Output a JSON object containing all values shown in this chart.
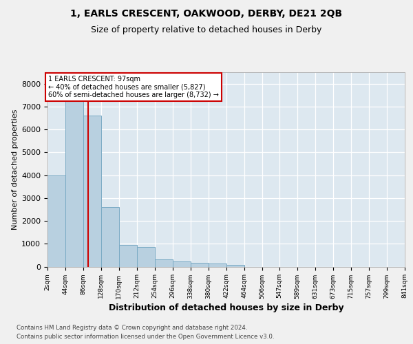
{
  "title": "1, EARLS CRESCENT, OAKWOOD, DERBY, DE21 2QB",
  "subtitle": "Size of property relative to detached houses in Derby",
  "xlabel": "Distribution of detached houses by size in Derby",
  "ylabel": "Number of detached properties",
  "background_color": "#dde8f0",
  "bar_color": "#b8d0e0",
  "bar_edge_color": "#7aaac4",
  "grid_color": "#ffffff",
  "annotation_line_color": "#cc0000",
  "annotation_text_line1": "1 EARLS CRESCENT: 97sqm",
  "annotation_text_line2": "← 40% of detached houses are smaller (5,827)",
  "annotation_text_line3": "60% of semi-detached houses are larger (8,732) →",
  "property_value": 97,
  "bins": [
    2,
    44,
    86,
    128,
    170,
    212,
    254,
    296,
    338,
    380,
    422,
    464,
    506,
    547,
    589,
    631,
    673,
    715,
    757,
    799,
    841
  ],
  "bin_labels": [
    "2sqm",
    "44sqm",
    "86sqm",
    "128sqm",
    "170sqm",
    "212sqm",
    "254sqm",
    "296sqm",
    "338sqm",
    "380sqm",
    "422sqm",
    "464sqm",
    "506sqm",
    "547sqm",
    "589sqm",
    "631sqm",
    "673sqm",
    "715sqm",
    "757sqm",
    "799sqm",
    "841sqm"
  ],
  "bar_heights": [
    4000,
    7600,
    6600,
    2600,
    950,
    870,
    330,
    220,
    180,
    130,
    90,
    0,
    0,
    0,
    0,
    0,
    0,
    0,
    0,
    0
  ],
  "ylim_max": 8500,
  "yticks": [
    0,
    1000,
    2000,
    3000,
    4000,
    5000,
    6000,
    7000,
    8000
  ],
  "footer_line1": "Contains HM Land Registry data © Crown copyright and database right 2024.",
  "footer_line2": "Contains public sector information licensed under the Open Government Licence v3.0."
}
